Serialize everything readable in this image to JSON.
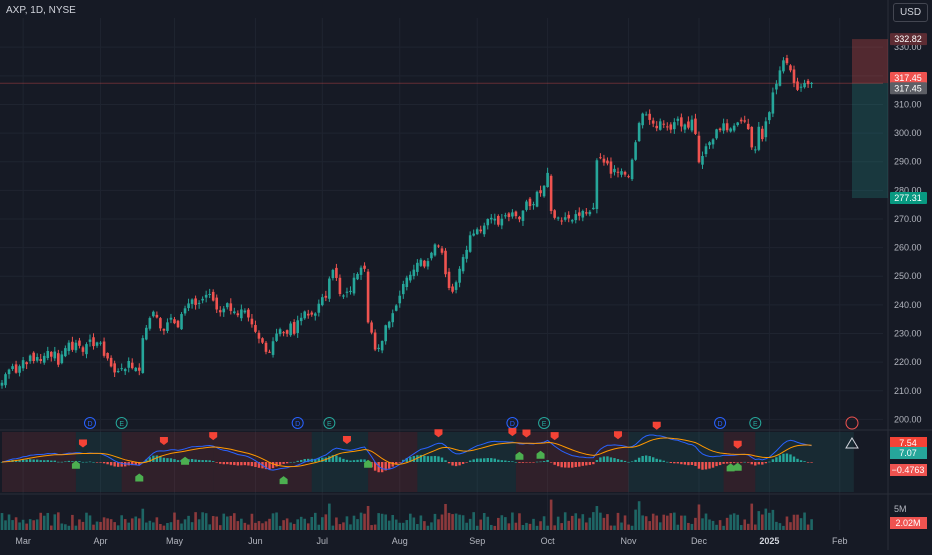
{
  "header": {
    "symbol_line": "AXP, 1D, NYSE",
    "currency": "USD"
  },
  "colors": {
    "up": "#26a69a",
    "down": "#ef5350",
    "bg": "#161a25",
    "grid": "#1f2430",
    "text": "#b2b5be",
    "macd": "#2962ff",
    "signal": "#ff9800",
    "pos_label": "#089981"
  },
  "chart_data": [
    {
      "type": "candlestick",
      "ticker": "AXP",
      "interval": "1D",
      "exchange": "NYSE",
      "yticks": [
        200,
        210,
        220,
        230,
        240,
        250,
        260,
        270,
        280,
        290,
        300,
        310,
        320,
        330
      ],
      "ylim": [
        197.7,
        336
      ],
      "xlabels": [
        {
          "label": "Mar",
          "index": 6
        },
        {
          "label": "Apr",
          "index": 28
        },
        {
          "label": "May",
          "index": 49
        },
        {
          "label": "Jun",
          "index": 72
        },
        {
          "label": "Jul",
          "index": 91
        },
        {
          "label": "Aug",
          "index": 113
        },
        {
          "label": "Sep",
          "index": 135
        },
        {
          "label": "Oct",
          "index": 155
        },
        {
          "label": "Nov",
          "index": 178
        },
        {
          "label": "Dec",
          "index": 198
        },
        {
          "label": "2025",
          "index": 218
        },
        {
          "label": "Feb",
          "index": 238
        }
      ],
      "closes": [
        212.8,
        215.8,
        217.4,
        218.6,
        216.3,
        218.6,
        220.7,
        219.3,
        222.3,
        220.4,
        221.8,
        220.4,
        222.2,
        223.9,
        221.9,
        223.7,
        219.1,
        222.7,
        224.9,
        226.8,
        224.3,
        226.8,
        225.7,
        223.6,
        226.3,
        227.9,
        225.6,
        226.9,
        226.8,
        222.2,
        221.3,
        218.5,
        216.4,
        216.9,
        217.9,
        217.6,
        220.4,
        217.9,
        218.0,
        217.0,
        228.4,
        232.0,
        235.4,
        237.6,
        235.6,
        231.8,
        231.0,
        233.9,
        235.5,
        233.6,
        232.2,
        236.8,
        238.8,
        240.5,
        241.9,
        240.0,
        240.7,
        242.1,
        243.5,
        243.8,
        241.5,
        238.4,
        237.4,
        238.7,
        240.6,
        237.9,
        237.7,
        236.4,
        238.4,
        238.0,
        235.6,
        233.2,
        230.6,
        228.2,
        226.8,
        223.6,
        223.5,
        227.3,
        230.0,
        231.5,
        230.4,
        229.9,
        233.5,
        229.9,
        234.6,
        235.5,
        237.7,
        236.3,
        236.6,
        237.0,
        240.4,
        242.7,
        242.5,
        249.2,
        252.2,
        249.4,
        243.8,
        243.3,
        244.6,
        244.9,
        249.5,
        250.8,
        253.0,
        252.6,
        233.9,
        230.3,
        224.4,
        225.0,
        227.4,
        232.9,
        234.1,
        237.1,
        239.8,
        243.2,
        247.3,
        249.5,
        250.5,
        252.3,
        254.7,
        255.8,
        253.4,
        255.3,
        258.2,
        261.1,
        260.6,
        258.2,
        250.7,
        245.9,
        244.6,
        247.9,
        252.6,
        256.7,
        259.2,
        264.3,
        264.9,
        266.4,
        265.7,
        267.7,
        270.0,
        270.4,
        270.1,
        268.0,
        270.1,
        271.3,
        270.7,
        272.3,
        271.0,
        269.9,
        272.9,
        276.1,
        274.5,
        275.2,
        279.5,
        279.0,
        281.6,
        286.1,
        272.8,
        270.4,
        270.5,
        269.3,
        270.6,
        270.2,
        269.6,
        271.7,
        271.1,
        272.8,
        271.9,
        272.5,
        273.9,
        290.5,
        291.4,
        289.7,
        289.4,
        285.8,
        287.5,
        286.3,
        286.7,
        285.5,
        284.7,
        290.7,
        296.8,
        303.5,
        306.8,
        306.5,
        304.6,
        303.3,
        301.7,
        304.1,
        303.0,
        302.2,
        301.2,
        303.8,
        305.0,
        302.3,
        303.0,
        301.9,
        304.7,
        299.7,
        289.8,
        292.0,
        295.4,
        296.8,
        297.8,
        301.3,
        301.0,
        303.4,
        301.0,
        301.6,
        302.6,
        303.7,
        304.1,
        304.0,
        301.4,
        295.0,
        294.3,
        302.2,
        297.9,
        304.1,
        307.3,
        314.2,
        317.2,
        321.9,
        325.4,
        324.4,
        321.9,
        317.5,
        315.1,
        316.2,
        317.5,
        317.1,
        317.5
      ],
      "last_price": 317.45,
      "position": {
        "entry": 317.45,
        "target": 332.82,
        "stop": 277.31,
        "entry_label": "317.45",
        "target_label": "332.82",
        "stop_label": "277.31",
        "entry_label2": "317.45"
      },
      "events": [
        {
          "label": "D",
          "index": 25
        },
        {
          "label": "E",
          "index": 34
        },
        {
          "label": "D",
          "index": 84
        },
        {
          "label": "E",
          "index": 93
        },
        {
          "label": "D",
          "index": 145
        },
        {
          "label": "E",
          "index": 154
        },
        {
          "label": "D",
          "index": 204
        },
        {
          "label": "E",
          "index": 214
        }
      ]
    },
    {
      "type": "line",
      "name": "MACD",
      "values_label": [
        "7.54",
        "7.07",
        "−0.4763"
      ],
      "buy_markers": [
        21,
        39,
        52,
        80,
        104,
        147,
        153,
        207,
        209
      ],
      "sell_markers": [
        23,
        46,
        60,
        98,
        124,
        145,
        149,
        157,
        175,
        186,
        209
      ]
    },
    {
      "type": "bar",
      "name": "Volume",
      "yticks_label": [
        "5M"
      ],
      "last_label": "2.02M"
    }
  ]
}
